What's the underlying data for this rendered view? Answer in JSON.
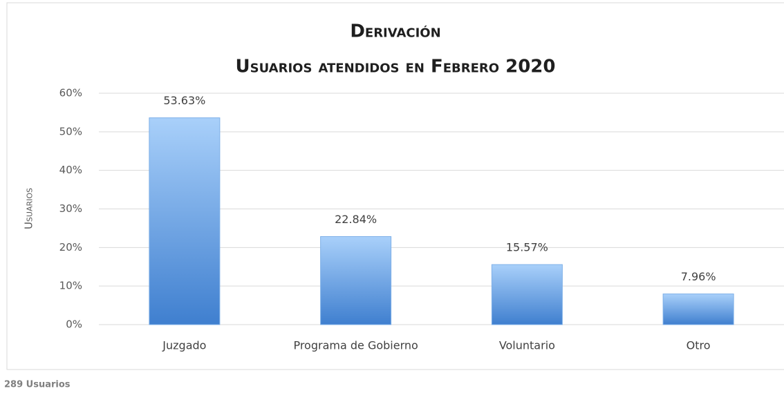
{
  "chart_data": {
    "type": "bar",
    "title": "Derivación",
    "subtitle": "Usuarios atendidos en Febrero 2020",
    "y_label": "Usuarios",
    "annotation": "289 Usuarios",
    "categories": [
      "Juzgado",
      "Programa de Gobierno",
      "Voluntario",
      "Otro"
    ],
    "values": [
      53.63,
      22.84,
      15.57,
      7.96
    ],
    "value_labels": [
      "53.63%",
      "22.84%",
      "15.57%",
      "7.96%"
    ],
    "color": "#3f7fcf",
    "ylim": [
      0,
      60
    ],
    "yticks": [
      {
        "value": 0,
        "label": "0%"
      },
      {
        "value": 10,
        "label": "10%"
      },
      {
        "value": 20,
        "label": "20%"
      },
      {
        "value": 30,
        "label": "30%"
      },
      {
        "value": 40,
        "label": "40%"
      },
      {
        "value": 50,
        "label": "50%"
      },
      {
        "value": 60,
        "label": "60%"
      }
    ],
    "grid": true
  }
}
